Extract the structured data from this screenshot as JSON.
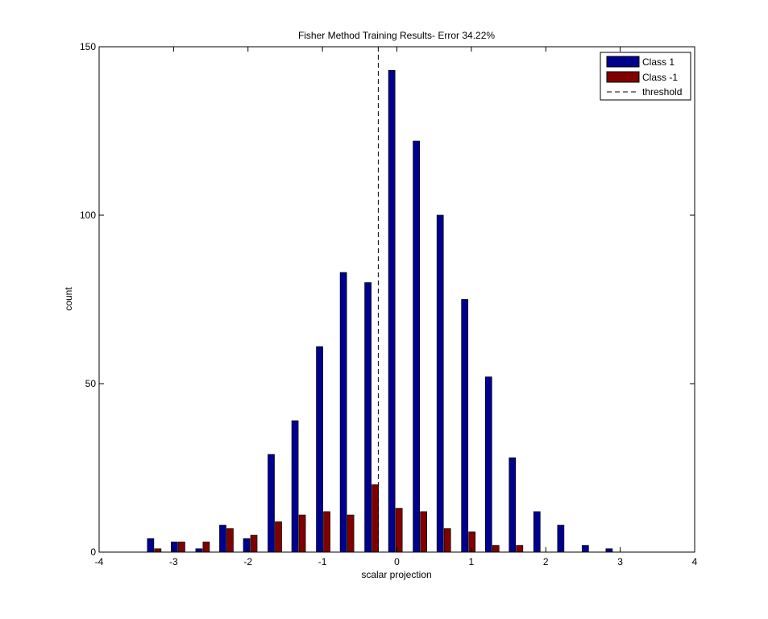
{
  "chart_data": {
    "type": "bar",
    "title": "Fisher Method Training Results- Error 34.22%",
    "xlabel": "scalar projection",
    "ylabel": "count",
    "xlim": [
      -4,
      4
    ],
    "ylim": [
      0,
      150
    ],
    "xticks": [
      "-4",
      "-3",
      "-2",
      "-1",
      "0",
      "1",
      "2",
      "3",
      "4"
    ],
    "yticks": [
      "0",
      "50",
      "100",
      "150"
    ],
    "x": [
      -3.26,
      -2.94,
      -2.61,
      -2.29,
      -1.97,
      -1.64,
      -1.32,
      -0.99,
      -0.67,
      -0.34,
      -0.02,
      0.31,
      0.63,
      0.96,
      1.28,
      1.6,
      1.93,
      2.25,
      2.58,
      2.9
    ],
    "series": [
      {
        "name": "Class 1",
        "color": "#00008f",
        "values": [
          4,
          3,
          1,
          8,
          4,
          29,
          39,
          61,
          83,
          80,
          143,
          122,
          100,
          75,
          52,
          28,
          12,
          8,
          2,
          1
        ]
      },
      {
        "name": "Class -1",
        "color": "#800000",
        "values": [
          1,
          3,
          3,
          7,
          5,
          9,
          11,
          12,
          11,
          20,
          13,
          12,
          7,
          6,
          2,
          2,
          0,
          0,
          0,
          0
        ]
      }
    ],
    "threshold": {
      "name": "threshold",
      "x": -0.25
    },
    "legend": {
      "placement": "top-right",
      "entries": [
        "Class 1",
        "Class -1",
        "threshold"
      ]
    },
    "grid": false
  }
}
